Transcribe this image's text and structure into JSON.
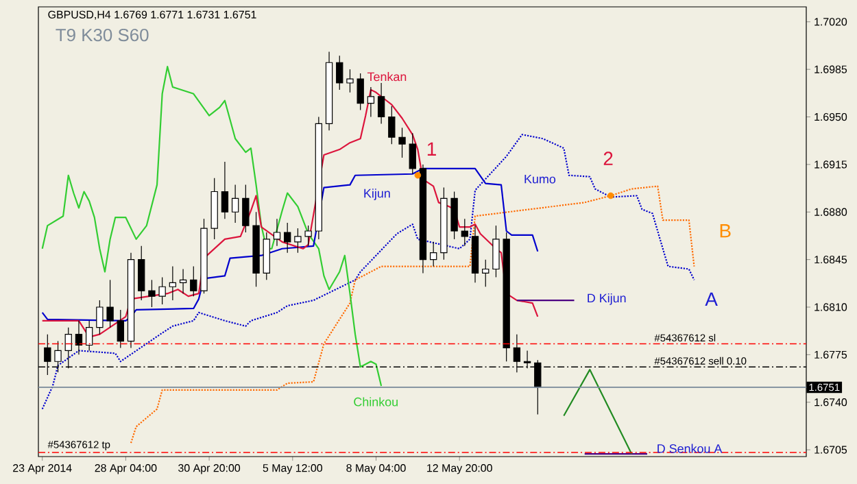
{
  "chart_data": {
    "type": "candlestick",
    "title": "GBPUSD,H4  1.6769 1.6771 1.6731 1.6751",
    "categories": [
      "23 Apr 2014",
      null,
      null,
      null,
      null,
      null,
      null,
      null,
      null,
      null,
      null,
      null,
      null,
      null,
      null,
      null,
      "28 Apr 04:00",
      null,
      null,
      null,
      null,
      null,
      null,
      null,
      null,
      null,
      null,
      null,
      null,
      null,
      null,
      null,
      "30 Apr 20:00",
      null,
      null,
      null,
      null,
      null,
      null,
      null,
      null,
      null,
      null,
      null,
      null,
      null,
      null,
      null,
      "5 May 12:00",
      null,
      null,
      null,
      null,
      null,
      null,
      null,
      null,
      null,
      null,
      null,
      null,
      null,
      null,
      null,
      "8 May 04:00",
      null,
      null,
      null,
      null,
      null,
      null,
      null,
      null,
      null,
      null,
      null,
      null,
      null,
      null,
      null,
      "12 May 20:00",
      null,
      null,
      null,
      null,
      null,
      null,
      null,
      null,
      null,
      null,
      null,
      null,
      null,
      null,
      null,
      null,
      null,
      null,
      null,
      null,
      null,
      null,
      null,
      null,
      null,
      null,
      null,
      null,
      null,
      null,
      null,
      null,
      null,
      null,
      null,
      null,
      null,
      null,
      null,
      null,
      null,
      null,
      null,
      null,
      null,
      null,
      null,
      null,
      null,
      null,
      null,
      null,
      null,
      null,
      null,
      null,
      null,
      null,
      null,
      null,
      null,
      null,
      null,
      null,
      null,
      null
    ],
    "ohlc": [
      null,
      [
        1.678,
        1.679,
        1.676,
        1.677
      ],
      null,
      [
        1.677,
        1.6785,
        1.6762,
        1.6778
      ],
      null,
      [
        1.6778,
        1.6795,
        1.6765,
        1.679
      ],
      null,
      [
        1.679,
        1.68,
        1.6775,
        1.6782
      ],
      null,
      [
        1.6782,
        1.68,
        1.6778,
        1.6795
      ],
      null,
      [
        1.6795,
        1.6815,
        1.679,
        1.681
      ],
      null,
      [
        1.681,
        1.683,
        1.6795,
        1.68
      ],
      null,
      [
        1.68,
        1.6808,
        1.678,
        1.6785
      ],
      null,
      [
        1.6785,
        1.685,
        1.678,
        1.6845
      ],
      null,
      [
        1.6845,
        1.6855,
        1.6815,
        1.6822
      ],
      null,
      [
        1.6822,
        1.683,
        1.681,
        1.6818
      ],
      null,
      [
        1.6818,
        1.6832,
        1.6812,
        1.6825
      ],
      null,
      [
        1.6825,
        1.684,
        1.6815,
        1.6828
      ],
      null,
      [
        1.6828,
        1.6838,
        1.682,
        1.683
      ],
      null,
      [
        1.683,
        1.684,
        1.6818,
        1.6822
      ],
      null,
      [
        1.6822,
        1.6875,
        1.682,
        1.6868
      ],
      null,
      [
        1.6868,
        1.6905,
        1.686,
        1.6895
      ],
      null,
      [
        1.6895,
        1.6917,
        1.6875,
        1.688
      ],
      null,
      [
        1.688,
        1.69,
        1.6872,
        1.689
      ],
      null,
      [
        1.689,
        1.69,
        1.6865,
        1.687
      ],
      null,
      [
        1.687,
        1.688,
        1.6825,
        1.6835
      ],
      null,
      [
        1.6835,
        1.6865,
        1.683,
        1.686
      ],
      null,
      [
        1.686,
        1.6875,
        1.6855,
        1.6865
      ],
      null,
      [
        1.6865,
        1.6872,
        1.685,
        1.6858
      ],
      null,
      [
        1.6858,
        1.6868,
        1.685,
        1.6862
      ],
      null,
      [
        1.6862,
        1.687,
        1.6855,
        1.6866
      ],
      null,
      [
        1.6866,
        1.695,
        1.686,
        1.6945
      ],
      null,
      [
        1.6945,
        1.6998,
        1.694,
        1.699
      ],
      null,
      [
        1.699,
        1.6995,
        1.697,
        1.6975
      ],
      null,
      [
        1.6975,
        1.6985,
        1.6968,
        1.6978
      ],
      null,
      [
        1.6978,
        1.6982,
        1.6955,
        1.696
      ],
      null,
      [
        1.696,
        1.6972,
        1.695,
        1.6965
      ],
      null,
      [
        1.6965,
        1.6975,
        1.6945,
        1.695
      ],
      null,
      [
        1.695,
        1.6958,
        1.693,
        1.6935
      ],
      null,
      [
        1.6935,
        1.6942,
        1.692,
        1.693
      ],
      null,
      [
        1.693,
        1.6938,
        1.6908,
        1.6912
      ],
      null,
      [
        1.6912,
        1.6915,
        1.6835,
        1.6845
      ],
      null,
      [
        1.6845,
        1.6858,
        1.684,
        1.685
      ],
      null,
      [
        1.685,
        1.6898,
        1.6845,
        1.689
      ],
      null,
      [
        1.689,
        1.6895,
        1.686,
        1.6866
      ],
      null,
      [
        1.6866,
        1.6875,
        1.6855,
        1.6862
      ],
      null,
      [
        1.6862,
        1.687,
        1.6828,
        1.6835
      ],
      null,
      [
        1.6835,
        1.6845,
        1.6825,
        1.6838
      ],
      null,
      [
        1.6838,
        1.687,
        1.6832,
        1.686
      ],
      null,
      [
        1.686,
        1.6865,
        1.677,
        1.678
      ],
      null,
      [
        1.678,
        1.679,
        1.6762,
        1.677
      ],
      null,
      [
        1.677,
        1.6778,
        1.6765,
        1.6769
      ],
      null,
      [
        1.6769,
        1.6771,
        1.6731,
        1.6751
      ],
      null,
      null,
      null,
      null,
      null,
      null,
      null,
      null,
      null,
      null,
      null,
      null,
      null,
      null,
      null,
      null,
      null,
      null,
      null,
      null,
      null,
      null,
      null,
      null,
      null,
      null,
      null,
      null,
      null,
      null,
      null,
      null,
      null,
      null,
      null,
      null,
      null,
      null,
      null,
      null,
      null,
      null,
      null,
      null,
      null,
      null,
      null,
      null,
      null,
      null,
      null
    ],
    "series": [
      {
        "type": "line",
        "color": "#0000cd",
        "line_style": "dotted",
        "values": [
          1.6735,
          null,
          1.6752,
          1.6767,
          null,
          null,
          null,
          1.6778,
          null,
          null,
          null,
          null,
          null,
          null,
          1.6776,
          1.677,
          null,
          null,
          null,
          null,
          null,
          null,
          null,
          1.6791,
          null,
          1.6796,
          null,
          null,
          null,
          1.68,
          1.6806,
          null,
          null,
          null,
          null,
          1.68,
          null,
          null,
          null,
          1.6796,
          1.68,
          null,
          null,
          null,
          null,
          1.6806,
          null,
          1.6811,
          null,
          null,
          null,
          null,
          1.6815,
          null,
          null,
          null,
          null,
          null,
          null,
          null,
          1.683,
          1.6836,
          null,
          null,
          null,
          null,
          null,
          null,
          1.6864,
          null,
          null,
          1.6871,
          1.686,
          null,
          null,
          null,
          null,
          null,
          null,
          null,
          1.6853,
          null,
          1.686,
          1.6896,
          null,
          null,
          null,
          null,
          null,
          1.6921,
          null,
          null,
          1.6937,
          null,
          null,
          null,
          1.6934,
          null,
          null,
          null,
          1.6927,
          1.6907,
          null,
          null,
          null,
          1.6906,
          1.6897,
          null,
          null,
          1.6891,
          null,
          null,
          null,
          null,
          1.6892,
          1.6882,
          null,
          1.6879,
          null,
          1.6853,
          1.684,
          null,
          null,
          null,
          1.6838,
          1.683,
          null,
          null,
          null,
          null,
          null,
          null,
          null,
          null,
          null,
          null,
          null,
          null,
          null,
          null,
          null,
          null,
          null,
          null,
          null,
          null,
          null
        ]
      },
      {
        "type": "line",
        "color": "#ff6a00",
        "line_style": "dotted",
        "values": [
          null,
          null,
          null,
          null,
          null,
          null,
          null,
          null,
          null,
          null,
          null,
          null,
          null,
          null,
          null,
          null,
          null,
          1.671,
          1.6722,
          null,
          null,
          null,
          1.6735,
          1.6749,
          null,
          null,
          null,
          null,
          null,
          null,
          null,
          null,
          null,
          null,
          null,
          null,
          null,
          null,
          null,
          null,
          null,
          null,
          null,
          null,
          null,
          1.6749,
          null,
          1.6754,
          null,
          null,
          null,
          null,
          1.6755,
          null,
          1.6783,
          null,
          null,
          null,
          null,
          1.6813,
          1.683,
          null,
          null,
          null,
          null,
          1.684,
          null,
          null,
          null,
          null,
          null,
          null,
          null,
          null,
          null,
          null,
          null,
          null,
          null,
          null,
          null,
          null,
          1.684,
          1.6877,
          null,
          null,
          null,
          null,
          null,
          null,
          null,
          null,
          null,
          null,
          null,
          null,
          null,
          null,
          null,
          null,
          null,
          null,
          null,
          null,
          1.6887,
          null,
          null,
          null,
          null,
          1.6892,
          null,
          null,
          null,
          1.6897,
          null,
          null,
          null,
          null,
          1.6899,
          1.6874,
          null,
          null,
          null,
          null,
          1.6874,
          1.684,
          null,
          null,
          null,
          null,
          null,
          null,
          null,
          null,
          null,
          null,
          null,
          null,
          null,
          null,
          null,
          null,
          null,
          null,
          null,
          null,
          null
        ]
      },
      {
        "type": "line",
        "color": "#32cd32",
        "values": [
          1.6853,
          1.687,
          null,
          null,
          1.6877,
          1.6907,
          1.6894,
          1.6883,
          1.6895,
          1.6888,
          1.6876,
          1.6853,
          1.6836,
          1.686,
          1.6876,
          null,
          1.6876,
          null,
          1.686,
          null,
          1.687,
          null,
          1.69,
          1.6967,
          1.6987,
          1.6972,
          null,
          null,
          null,
          1.6967,
          null,
          null,
          1.6951,
          null,
          1.6957,
          1.6962,
          null,
          1.6934,
          null,
          1.6924,
          1.6927,
          1.69,
          1.687,
          1.6853,
          1.6853,
          null,
          1.6881,
          1.6894,
          null,
          1.6884,
          1.6874,
          1.6864,
          null,
          1.6853,
          1.6833,
          1.6823,
          null,
          1.6836,
          1.6848,
          1.682,
          1.679,
          1.6766,
          null,
          1.677,
          1.6768,
          1.6752,
          null,
          null,
          null,
          null,
          null,
          null,
          null,
          null,
          null,
          null,
          null,
          null,
          null,
          null,
          null,
          null,
          null,
          null,
          null,
          null,
          null,
          null,
          null,
          null,
          null,
          null,
          null,
          null,
          null,
          null,
          null,
          null,
          null,
          null,
          null,
          null,
          null,
          null,
          null,
          null,
          null,
          null,
          null,
          null,
          null,
          null,
          null,
          null,
          null,
          null,
          null,
          null,
          null,
          null,
          null,
          null,
          null,
          null,
          null,
          null,
          null,
          null,
          null,
          null,
          null,
          null,
          null,
          null,
          null,
          null,
          null,
          null,
          null,
          null,
          null,
          null,
          null,
          null,
          null,
          null,
          null
        ]
      },
      {
        "type": "line",
        "color": "#0000cd",
        "values": [
          1.6806,
          1.6801,
          null,
          null,
          null,
          null,
          null,
          null,
          null,
          null,
          null,
          null,
          null,
          null,
          null,
          null,
          1.68,
          1.6803,
          1.6808,
          null,
          null,
          null,
          null,
          null,
          null,
          null,
          null,
          null,
          null,
          1.6809,
          1.6816,
          1.6831,
          null,
          null,
          null,
          1.6833,
          1.6846,
          null,
          null,
          null,
          null,
          null,
          1.6848,
          null,
          null,
          null,
          1.6853,
          null,
          null,
          null,
          null,
          null,
          1.6855,
          null,
          1.6898,
          null,
          null,
          null,
          null,
          1.69,
          1.6907,
          null,
          null,
          null,
          null,
          null,
          null,
          null,
          null,
          null,
          null,
          1.6908,
          null,
          1.6912,
          null,
          null,
          null,
          null,
          null,
          null,
          null,
          null,
          null,
          1.6912,
          null,
          1.6901,
          null,
          null,
          1.69,
          1.6866,
          1.6863,
          null,
          null,
          null,
          1.6863,
          1.6851,
          null,
          null,
          null,
          null,
          null,
          null,
          null,
          null,
          null,
          null,
          null,
          null,
          null,
          null,
          null,
          null,
          null,
          null,
          null,
          null,
          null,
          null,
          null,
          null,
          null,
          null,
          null,
          null,
          null,
          null,
          null,
          null,
          null,
          null,
          null,
          null,
          null,
          null,
          null,
          null,
          null,
          null,
          null,
          null,
          null,
          null,
          null,
          null,
          null,
          null,
          null
        ]
      },
      {
        "type": "line",
        "color": "#dc143c",
        "values": [
          1.68,
          null,
          null,
          null,
          null,
          null,
          null,
          1.68,
          null,
          1.6788,
          null,
          1.679,
          null,
          null,
          null,
          null,
          1.6803,
          1.6816,
          null,
          null,
          null,
          null,
          null,
          null,
          1.682,
          null,
          1.6823,
          null,
          1.6818,
          null,
          1.682,
          1.6846,
          null,
          null,
          null,
          1.686,
          null,
          null,
          1.6862,
          null,
          1.6881,
          1.6892,
          1.6869,
          null,
          null,
          null,
          1.6858,
          null,
          null,
          null,
          1.6853,
          1.6856,
          null,
          null,
          1.6922,
          null,
          null,
          1.6926,
          null,
          1.6931,
          null,
          1.6934,
          1.6951,
          1.697,
          1.6968,
          null,
          1.6962,
          1.6959,
          null,
          1.6949,
          null,
          1.6937,
          1.6926,
          1.6904,
          null,
          1.6899,
          1.6887,
          null,
          1.6884,
          1.6882,
          1.6869,
          null,
          1.6869,
          1.6871,
          1.6864,
          null,
          null,
          1.6853,
          1.685,
          1.682,
          null,
          1.6815,
          null,
          null,
          1.6813,
          1.6803,
          null,
          null,
          null,
          null,
          null,
          null,
          null,
          null,
          null,
          null,
          null,
          null,
          null,
          null,
          null,
          null,
          null,
          null,
          null,
          null,
          null,
          null,
          null,
          null,
          null,
          null,
          null,
          null,
          null,
          null,
          null,
          null,
          null,
          null,
          null,
          null,
          null,
          null,
          null,
          null,
          null,
          null,
          null,
          null,
          null,
          null,
          null,
          null,
          null,
          null,
          null
        ]
      },
      {
        "type": "line",
        "color": "#4b0082",
        "values": [
          null,
          null,
          null,
          null,
          null,
          null,
          null,
          null,
          null,
          null,
          null,
          null,
          null,
          null,
          null,
          null,
          null,
          null,
          null,
          null,
          null,
          null,
          null,
          null,
          null,
          null,
          null,
          null,
          null,
          null,
          null,
          null,
          null,
          null,
          null,
          null,
          null,
          null,
          null,
          null,
          null,
          null,
          null,
          null,
          null,
          null,
          null,
          null,
          null,
          null,
          null,
          null,
          null,
          null,
          null,
          null,
          null,
          null,
          null,
          null,
          null,
          null,
          null,
          null,
          null,
          null,
          null,
          null,
          null,
          null,
          null,
          null,
          null,
          null,
          null,
          null,
          null,
          null,
          null,
          null,
          null,
          null,
          null,
          null,
          null,
          null,
          null,
          null,
          null,
          null,
          null,
          1.6815,
          null,
          null,
          null,
          null,
          null,
          null,
          null,
          null,
          null,
          null,
          1.6815,
          null,
          null,
          null,
          null,
          null,
          null,
          null,
          null,
          null,
          null,
          null,
          null,
          null,
          null,
          null,
          null,
          null,
          null,
          null,
          null,
          null,
          null,
          null,
          null,
          null,
          null,
          null,
          null,
          null,
          null,
          null,
          null,
          null,
          null,
          null,
          null,
          null,
          null,
          null,
          null,
          null,
          null,
          null,
          null
        ]
      },
      {
        "type": "line",
        "color": "#4b0082",
        "values": [
          null,
          null,
          null,
          null,
          null,
          null,
          null,
          null,
          null,
          null,
          null,
          null,
          null,
          null,
          null,
          null,
          null,
          null,
          null,
          null,
          null,
          null,
          null,
          null,
          null,
          null,
          null,
          null,
          null,
          null,
          null,
          null,
          null,
          null,
          null,
          null,
          null,
          null,
          null,
          null,
          null,
          null,
          null,
          null,
          null,
          null,
          null,
          null,
          null,
          null,
          null,
          null,
          null,
          null,
          null,
          null,
          null,
          null,
          null,
          null,
          null,
          null,
          null,
          null,
          null,
          null,
          null,
          null,
          null,
          null,
          null,
          null,
          null,
          null,
          null,
          null,
          null,
          null,
          null,
          null,
          null,
          null,
          null,
          null,
          null,
          null,
          null,
          null,
          null,
          null,
          null,
          null,
          null,
          null,
          null,
          null,
          null,
          null,
          null,
          null,
          null,
          null,
          null,
          null,
          1.6702,
          null,
          null,
          null,
          null,
          null,
          null,
          null,
          null,
          null,
          null,
          null,
          1.6702,
          null,
          null,
          null,
          null,
          null,
          null,
          null,
          null,
          null,
          null,
          null,
          null,
          null,
          null,
          null,
          null,
          null,
          null,
          null,
          null,
          null,
          null,
          null,
          null,
          null,
          null,
          null,
          null,
          null,
          null
        ]
      },
      {
        "type": "line",
        "color": "#228b22",
        "values": [
          null,
          null,
          null,
          null,
          null,
          null,
          null,
          null,
          null,
          null,
          null,
          null,
          null,
          null,
          null,
          null,
          null,
          null,
          null,
          null,
          null,
          null,
          null,
          null,
          null,
          null,
          null,
          null,
          null,
          null,
          null,
          null,
          null,
          null,
          null,
          null,
          null,
          null,
          null,
          null,
          null,
          null,
          null,
          null,
          null,
          null,
          null,
          null,
          null,
          null,
          null,
          null,
          null,
          null,
          null,
          null,
          null,
          null,
          null,
          null,
          null,
          null,
          null,
          null,
          null,
          null,
          null,
          null,
          null,
          null,
          null,
          null,
          null,
          null,
          null,
          null,
          null,
          null,
          null,
          null,
          null,
          null,
          null,
          null,
          null,
          null,
          null,
          null,
          null,
          null,
          null,
          null,
          null,
          null,
          null,
          null,
          null,
          null,
          null,
          null,
          1.673,
          null,
          null,
          null,
          null,
          1.6764,
          null,
          null,
          null,
          null,
          null,
          null,
          null,
          1.6702,
          null,
          null,
          null,
          null,
          null,
          null,
          null,
          null,
          null,
          null,
          null,
          null,
          null,
          null,
          null,
          null,
          null,
          null,
          null,
          null,
          null,
          null,
          null,
          null,
          null,
          null,
          null,
          null,
          null,
          null,
          null,
          null,
          null
        ]
      },
      {
        "type": "scatter",
        "color": "#ff8c00",
        "marker": "circle",
        "values": [
          null,
          null,
          null,
          null,
          null,
          null,
          null,
          null,
          null,
          null,
          null,
          null,
          null,
          null,
          null,
          null,
          null,
          null,
          null,
          null,
          null,
          null,
          null,
          null,
          null,
          null,
          null,
          null,
          null,
          null,
          null,
          null,
          null,
          null,
          null,
          null,
          null,
          null,
          null,
          null,
          null,
          null,
          null,
          null,
          null,
          null,
          null,
          null,
          null,
          null,
          null,
          null,
          null,
          null,
          null,
          null,
          null,
          null,
          null,
          null,
          null,
          null,
          null,
          null,
          null,
          null,
          null,
          null,
          null,
          null,
          null,
          null,
          1.6907,
          null,
          null,
          null,
          null,
          null,
          null,
          null,
          null,
          null,
          null,
          null,
          null,
          null,
          null,
          null,
          null,
          null,
          null,
          null,
          null,
          null,
          null,
          null,
          null,
          null,
          null,
          null,
          null,
          null,
          null,
          null,
          null,
          null,
          null,
          null,
          null,
          1.6892,
          null,
          null,
          null,
          null,
          null,
          null,
          null,
          null,
          null,
          null,
          null,
          null,
          null,
          null,
          null,
          null,
          null,
          null,
          null,
          null,
          null,
          null,
          null,
          null,
          null,
          null,
          null,
          null,
          null,
          null,
          null,
          null,
          null,
          null,
          null,
          null,
          null
        ]
      }
    ],
    "ylim": [
      1.67,
      1.7031
    ],
    "yticks": [
      1.6705,
      {
        "value": 1.674,
        "label": "1.6740"
      },
      1.6775,
      {
        "value": 1.681,
        "label": "1.6810"
      },
      1.6845,
      {
        "value": 1.688,
        "label": "1.6880"
      },
      1.6915,
      {
        "value": 1.695,
        "label": "1.6950"
      },
      1.6985,
      {
        "value": 1.702,
        "label": "1.7020"
      }
    ],
    "ref_lines": [
      {
        "axis": "y",
        "value": 1.6783,
        "label": "#54367612 sl",
        "color": "#ff0000",
        "line_style": "dashed"
      },
      {
        "axis": "y",
        "value": 1.6766,
        "label": "#54367612 sell 0.10",
        "color": "#000000",
        "line_style": "dashed"
      },
      {
        "axis": "y",
        "value": 1.6703,
        "label": "#54367612 tp",
        "color": "#ff0000",
        "line_style": "dashed"
      },
      {
        "axis": "y",
        "value": 1.6751,
        "label": "1.6751",
        "color": "#778899",
        "line_style": "solid"
      }
    ],
    "annotations": [
      "T9 K30 S60",
      "Tenkan",
      "Kijun",
      "Kumo",
      "Chinkou",
      "1",
      "2",
      "A",
      "B",
      "D Kijun",
      "D Senkou A"
    ]
  }
}
